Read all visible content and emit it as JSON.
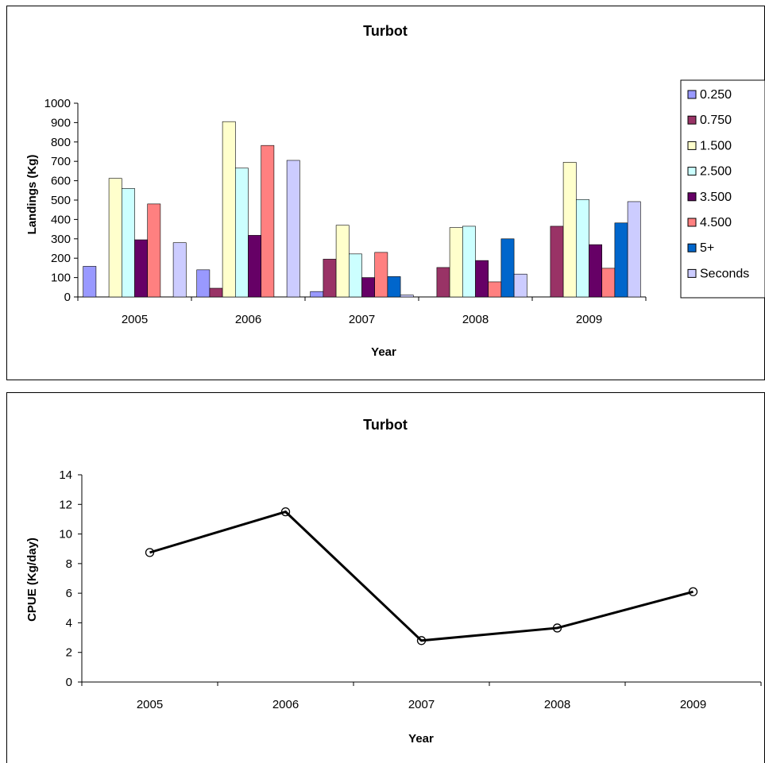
{
  "chart_data": [
    {
      "type": "bar",
      "title": "Turbot",
      "xlabel": "Year",
      "ylabel": "Landings (Kg)",
      "ylim": [
        0,
        1000
      ],
      "yticks": [
        0,
        100,
        200,
        300,
        400,
        500,
        600,
        700,
        800,
        900,
        1000
      ],
      "grid": false,
      "legend_position": "right",
      "categories": [
        "2005",
        "2006",
        "2007",
        "2008",
        "2009"
      ],
      "series": [
        {
          "name": "0.250",
          "color": "#9999FF",
          "values": [
            158,
            140,
            28,
            0,
            0
          ]
        },
        {
          "name": "0.750",
          "color": "#993366",
          "values": [
            0,
            45,
            195,
            152,
            365
          ]
        },
        {
          "name": "1.500",
          "color": "#FFFFCC",
          "values": [
            612,
            905,
            370,
            358,
            695
          ]
        },
        {
          "name": "2.500",
          "color": "#CCFFFF",
          "values": [
            560,
            665,
            222,
            365,
            503
          ]
        },
        {
          "name": "3.500",
          "color": "#660066",
          "values": [
            295,
            318,
            100,
            188,
            270
          ]
        },
        {
          "name": "4.500",
          "color": "#FF8080",
          "values": [
            480,
            782,
            230,
            78,
            148
          ]
        },
        {
          "name": "5+",
          "color": "#0066CC",
          "values": [
            0,
            0,
            105,
            300,
            382
          ]
        },
        {
          "name": "Seconds",
          "color": "#CCCCFF",
          "values": [
            280,
            705,
            10,
            118,
            492
          ]
        }
      ]
    },
    {
      "type": "line",
      "title": "Turbot",
      "xlabel": "Year",
      "ylabel": "CPUE (Kg/day)",
      "ylim": [
        0,
        14
      ],
      "yticks": [
        0,
        2,
        4,
        6,
        8,
        10,
        12,
        14
      ],
      "grid": false,
      "categories": [
        "2005",
        "2006",
        "2007",
        "2008",
        "2009"
      ],
      "series": [
        {
          "color": "#000000",
          "marker": "open-circle",
          "values": [
            8.75,
            11.5,
            2.8,
            3.65,
            6.1
          ]
        }
      ]
    }
  ]
}
